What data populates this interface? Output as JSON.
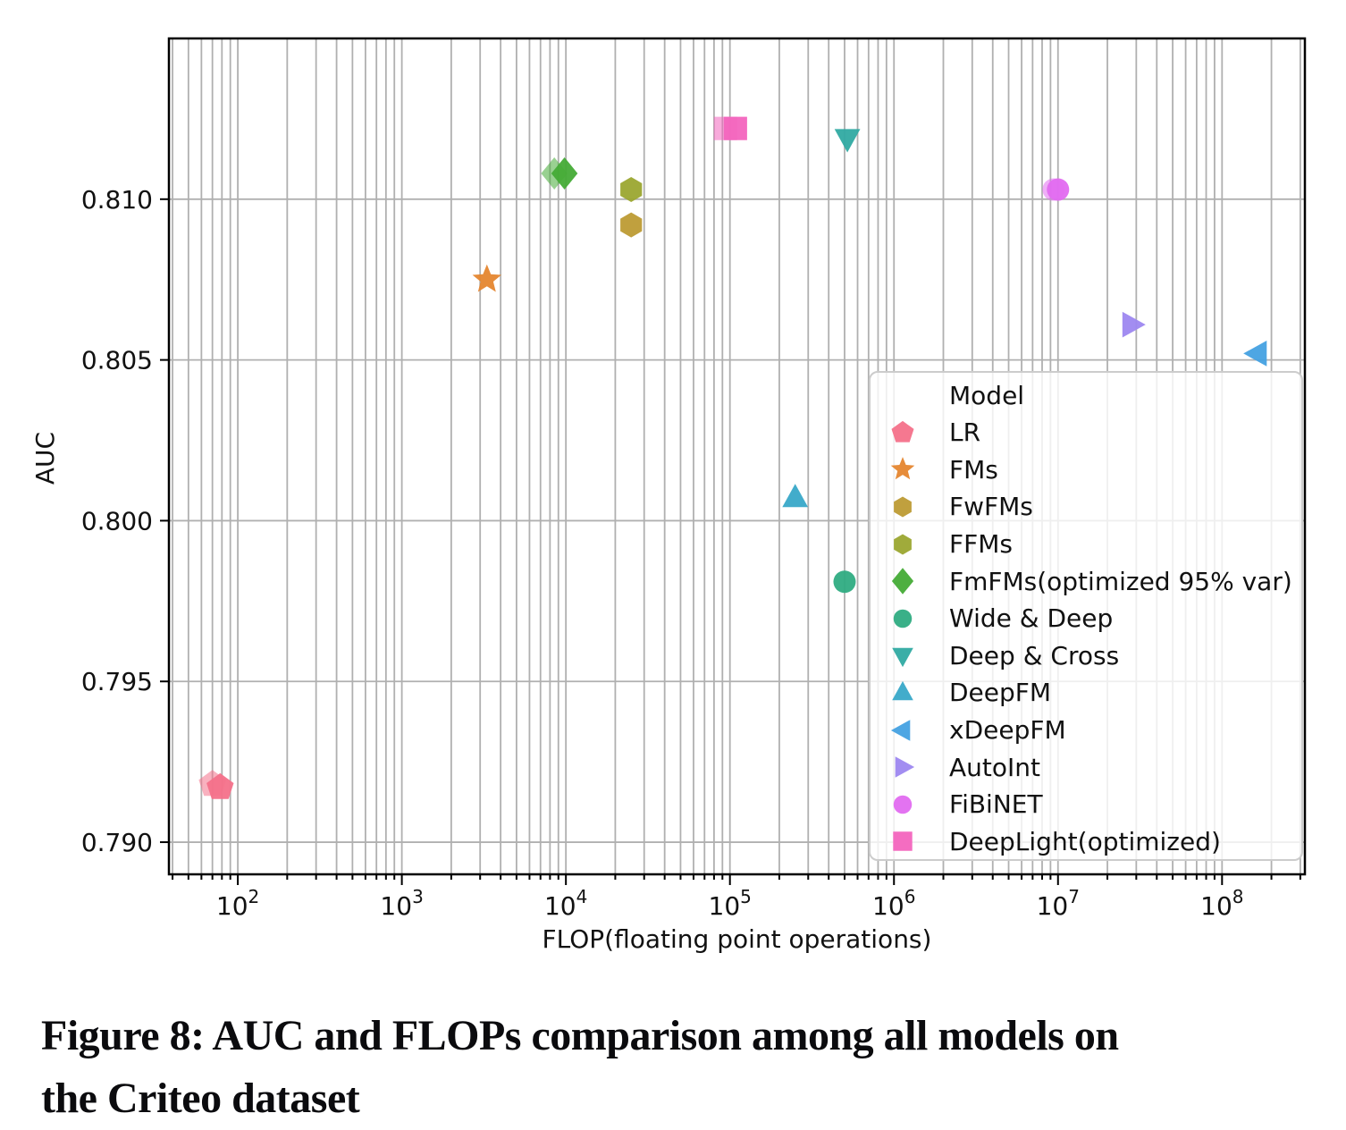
{
  "figure": {
    "caption_line1": "Figure 8: AUC and FLOPs comparison among all models on",
    "caption_line2": "the Criteo dataset"
  },
  "chart_data": {
    "type": "scatter",
    "title": "",
    "xlabel": "FLOP(floating point operations)",
    "ylabel": "AUC",
    "x_scale": "log",
    "grid": true,
    "grid_color": "#b0b0b0",
    "legend_title": "Model",
    "legend_position": "lower right",
    "x_tick_exponents": [
      2,
      3,
      4,
      5,
      6,
      7,
      8
    ],
    "y_ticks": [
      0.79,
      0.795,
      0.8,
      0.805,
      0.81
    ],
    "xlim_log10": [
      1.58,
      8.505
    ],
    "ylim": [
      0.789,
      0.815
    ],
    "series": [
      {
        "name": "LR",
        "marker": "pentagon",
        "color": "#f4718a",
        "points": [
          [
            78,
            0.7917
          ]
        ],
        "ghost_points": [
          [
            70,
            0.7918
          ]
        ]
      },
      {
        "name": "FMs",
        "marker": "star",
        "color": "#e5862f",
        "points": [
          [
            3300,
            0.8075
          ]
        ]
      },
      {
        "name": "FwFMs",
        "marker": "hexagon",
        "color": "#bd9b34",
        "points": [
          [
            25000,
            0.8092
          ]
        ]
      },
      {
        "name": "FFMs",
        "marker": "hexagon",
        "color": "#9ba730",
        "points": [
          [
            25000,
            0.8103
          ]
        ]
      },
      {
        "name": "FmFMs(optimized 95% var)",
        "marker": "diamond",
        "color": "#45ab36",
        "points": [
          [
            9800,
            0.8108
          ]
        ],
        "ghost_points": [
          [
            8500,
            0.8108
          ]
        ]
      },
      {
        "name": "Wide & Deep",
        "marker": "circle",
        "color": "#2fac82",
        "points": [
          [
            500000,
            0.7981
          ]
        ]
      },
      {
        "name": "Deep & Cross",
        "marker": "triangle-down",
        "color": "#30aaa2",
        "points": [
          [
            520000,
            0.8119
          ]
        ]
      },
      {
        "name": "DeepFM",
        "marker": "triangle-up",
        "color": "#38a8c8",
        "points": [
          [
            250000,
            0.8007
          ]
        ]
      },
      {
        "name": "xDeepFM",
        "marker": "triangle-left",
        "color": "#45a1e2",
        "points": [
          [
            165000000,
            0.8052
          ]
        ]
      },
      {
        "name": "AutoInt",
        "marker": "triangle-right",
        "color": "#9d87f0",
        "points": [
          [
            28000000,
            0.8061
          ]
        ]
      },
      {
        "name": "FiBiNET",
        "marker": "circle",
        "color": "#e16cf0",
        "points": [
          [
            10000000,
            0.8103
          ]
        ],
        "ghost_points": [
          [
            9400000,
            0.8103
          ]
        ]
      },
      {
        "name": "DeepLight(optimized)",
        "marker": "square",
        "color": "#f365be",
        "points": [
          [
            108000,
            0.8122
          ]
        ],
        "ghost_points": [
          [
            94000,
            0.8122
          ]
        ]
      }
    ]
  }
}
